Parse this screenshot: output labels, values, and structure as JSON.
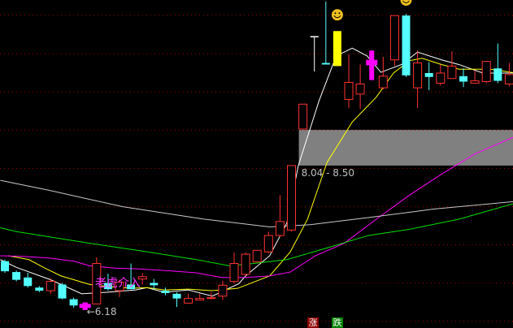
{
  "chart_data": {
    "type": "candlestick",
    "ylim": [
      5.95,
      10.17
    ],
    "grid": true,
    "band": {
      "low": 8.04,
      "high": 8.5,
      "label": "8.04 - 8.50",
      "from_index": 26
    },
    "low_marker": {
      "index": 7,
      "label": "6.18"
    },
    "signal_text": "老虎介入",
    "legend_up": "涨",
    "legend_down": "跌",
    "colors": {
      "up": "#ff3232",
      "down": "#54ffff",
      "band": "#808080",
      "grid": "#a00000",
      "special_magenta": "#ff00ff",
      "limit_up": "#ffff00",
      "doji_white": "#ffffff"
    },
    "candles": [
      {
        "o": 6.81,
        "h": 6.83,
        "l": 6.66,
        "c": 6.68
      },
      {
        "o": 6.67,
        "h": 6.69,
        "l": 6.55,
        "c": 6.57
      },
      {
        "o": 6.6,
        "h": 6.66,
        "l": 6.47,
        "c": 6.49
      },
      {
        "o": 6.47,
        "h": 6.49,
        "l": 6.41,
        "c": 6.43
      },
      {
        "o": 6.43,
        "h": 6.59,
        "l": 6.39,
        "c": 6.55
      },
      {
        "o": 6.51,
        "h": 6.53,
        "l": 6.32,
        "c": 6.33
      },
      {
        "o": 6.32,
        "h": 6.34,
        "l": 6.21,
        "c": 6.24
      },
      {
        "o": 6.26,
        "h": 6.28,
        "l": 6.18,
        "c": 6.24,
        "color": "magenta"
      },
      {
        "o": 6.26,
        "h": 6.86,
        "l": 6.26,
        "c": 6.78
      },
      {
        "o": 6.53,
        "h": 6.65,
        "l": 6.43,
        "c": 6.45
      },
      {
        "o": 6.43,
        "h": 6.57,
        "l": 6.35,
        "c": 6.54
      },
      {
        "o": 6.51,
        "h": 6.78,
        "l": 6.45,
        "c": 6.45
      },
      {
        "o": 6.58,
        "h": 6.66,
        "l": 6.51,
        "c": 6.61
      },
      {
        "o": 6.53,
        "h": 6.58,
        "l": 6.45,
        "c": 6.5
      },
      {
        "o": 6.43,
        "h": 6.47,
        "l": 6.37,
        "c": 6.4
      },
      {
        "o": 6.39,
        "h": 6.41,
        "l": 6.22,
        "c": 6.33
      },
      {
        "o": 6.27,
        "h": 6.39,
        "l": 6.27,
        "c": 6.33
      },
      {
        "o": 6.31,
        "h": 6.39,
        "l": 6.31,
        "c": 6.33
      },
      {
        "o": 6.33,
        "h": 6.41,
        "l": 6.32,
        "c": 6.34
      },
      {
        "o": 6.36,
        "h": 6.56,
        "l": 6.31,
        "c": 6.5
      },
      {
        "o": 6.55,
        "h": 6.92,
        "l": 6.52,
        "c": 6.78
      },
      {
        "o": 6.64,
        "h": 6.92,
        "l": 6.62,
        "c": 6.9
      },
      {
        "o": 6.8,
        "h": 6.95,
        "l": 6.8,
        "c": 6.95
      },
      {
        "o": 6.93,
        "h": 7.19,
        "l": 6.91,
        "c": 7.14
      },
      {
        "o": 7.14,
        "h": 7.66,
        "l": 7.12,
        "c": 7.32
      },
      {
        "o": 7.21,
        "h": 8.04,
        "l": 7.19,
        "c": 8.04
      },
      {
        "o": 8.51,
        "h": 8.83,
        "l": 8.51,
        "c": 8.83
      },
      {
        "o": 9.7,
        "h": 9.7,
        "l": 9.25,
        "c": 9.7,
        "color": "white"
      },
      {
        "o": 9.36,
        "h": 10.15,
        "l": 9.34,
        "c": 9.34
      },
      {
        "o": 9.32,
        "h": 9.77,
        "l": 9.32,
        "c": 9.77,
        "color": "yellow",
        "smiley": true
      },
      {
        "o": 8.89,
        "h": 9.47,
        "l": 8.78,
        "c": 9.11
      },
      {
        "o": 8.96,
        "h": 9.34,
        "l": 8.77,
        "c": 9.09
      },
      {
        "o": 9.33,
        "h": 9.52,
        "l": 9.14,
        "c": 9.4,
        "color": "magenta"
      },
      {
        "o": 9.04,
        "h": 9.44,
        "l": 9.02,
        "c": 9.19
      },
      {
        "o": 9.4,
        "h": 9.97,
        "l": 9.32,
        "c": 9.97
      },
      {
        "o": 9.97,
        "h": 9.99,
        "l": 9.18,
        "c": 9.2,
        "smiley": true
      },
      {
        "o": 9.04,
        "h": 9.52,
        "l": 8.78,
        "c": 9.36
      },
      {
        "o": 9.23,
        "h": 9.37,
        "l": 9.01,
        "c": 9.18
      },
      {
        "o": 9.1,
        "h": 9.34,
        "l": 9.07,
        "c": 9.23
      },
      {
        "o": 9.16,
        "h": 9.51,
        "l": 9.16,
        "c": 9.32
      },
      {
        "o": 9.19,
        "h": 9.29,
        "l": 9.05,
        "c": 9.12
      },
      {
        "o": 9.1,
        "h": 9.26,
        "l": 9.1,
        "c": 9.13
      },
      {
        "o": 9.12,
        "h": 9.38,
        "l": 9.1,
        "c": 9.38
      },
      {
        "o": 9.29,
        "h": 9.61,
        "l": 9.1,
        "c": 9.13
      },
      {
        "o": 9.09,
        "h": 9.36,
        "l": 9.06,
        "c": 9.21
      }
    ],
    "moving_averages": [
      {
        "color": "#ffffff",
        "points": [
          [
            0.6,
            6.83
          ],
          [
            2,
            6.73
          ],
          [
            5,
            6.57
          ],
          [
            7.7,
            6.39
          ],
          [
            9.9,
            6.41
          ],
          [
            12.4,
            6.44
          ],
          [
            13.4,
            6.47
          ],
          [
            14.9,
            6.41
          ],
          [
            17,
            6.44
          ],
          [
            19.1,
            6.36
          ],
          [
            21.4,
            6.52
          ],
          [
            22,
            6.62
          ],
          [
            24.1,
            6.88
          ],
          [
            25.6,
            7.3
          ],
          [
            26.6,
            8.04
          ],
          [
            28.4,
            8.87
          ],
          [
            29.9,
            9.45
          ],
          [
            31.3,
            9.55
          ],
          [
            32.6,
            9.45
          ],
          [
            33.8,
            9.24
          ],
          [
            35.6,
            9.34
          ],
          [
            37,
            9.5
          ],
          [
            39.1,
            9.4
          ],
          [
            40.6,
            9.34
          ],
          [
            42.7,
            9.23
          ],
          [
            45.6,
            9.23
          ]
        ]
      },
      {
        "color": "#ffff00",
        "points": [
          [
            1.3,
            6.88
          ],
          [
            3.1,
            6.83
          ],
          [
            4.5,
            6.72
          ],
          [
            5.9,
            6.62
          ],
          [
            8.4,
            6.51
          ],
          [
            10.2,
            6.48
          ],
          [
            12,
            6.46
          ],
          [
            13.4,
            6.47
          ],
          [
            14.9,
            6.44
          ],
          [
            17,
            6.45
          ],
          [
            19.1,
            6.43
          ],
          [
            21.3,
            6.46
          ],
          [
            24.1,
            6.62
          ],
          [
            25.9,
            6.93
          ],
          [
            27.4,
            7.35
          ],
          [
            29.1,
            8.08
          ],
          [
            31.3,
            8.6
          ],
          [
            33.4,
            8.92
          ],
          [
            34.9,
            9.23
          ],
          [
            36.3,
            9.39
          ],
          [
            37.4,
            9.42
          ],
          [
            39.1,
            9.34
          ],
          [
            40.6,
            9.28
          ],
          [
            43.4,
            9.28
          ],
          [
            45.6,
            9.23
          ]
        ]
      },
      {
        "color": "#ff00ff",
        "points": [
          [
            0.6,
            6.88
          ],
          [
            2.7,
            6.87
          ],
          [
            4.9,
            6.85
          ],
          [
            7,
            6.81
          ],
          [
            8.4,
            6.75
          ],
          [
            10.6,
            6.72
          ],
          [
            12.7,
            6.71
          ],
          [
            14.9,
            6.69
          ],
          [
            17.7,
            6.66
          ],
          [
            19.9,
            6.6
          ],
          [
            22,
            6.6
          ],
          [
            24.1,
            6.62
          ],
          [
            25.9,
            6.67
          ],
          [
            28.1,
            6.88
          ],
          [
            30.6,
            7.04
          ],
          [
            33.4,
            7.35
          ],
          [
            36.3,
            7.66
          ],
          [
            39.1,
            7.93
          ],
          [
            42,
            8.19
          ],
          [
            45.6,
            8.42
          ]
        ]
      },
      {
        "color": "#00e000",
        "points": [
          [
            0.6,
            7.24
          ],
          [
            2,
            7.19
          ],
          [
            8.4,
            7.04
          ],
          [
            13.4,
            6.93
          ],
          [
            17.7,
            6.83
          ],
          [
            20.6,
            6.75
          ],
          [
            22.7,
            6.78
          ],
          [
            25.6,
            6.83
          ],
          [
            29.1,
            6.98
          ],
          [
            32.7,
            7.14
          ],
          [
            36.3,
            7.22
          ],
          [
            40.6,
            7.35
          ],
          [
            45.6,
            7.56
          ]
        ]
      },
      {
        "color": "#c8c8c8",
        "points": [
          [
            0.6,
            7.85
          ],
          [
            4.9,
            7.72
          ],
          [
            11.3,
            7.51
          ],
          [
            18.4,
            7.35
          ],
          [
            24.1,
            7.25
          ],
          [
            27.7,
            7.28
          ],
          [
            32.7,
            7.37
          ],
          [
            38.4,
            7.48
          ],
          [
            45.6,
            7.58
          ]
        ]
      }
    ]
  }
}
